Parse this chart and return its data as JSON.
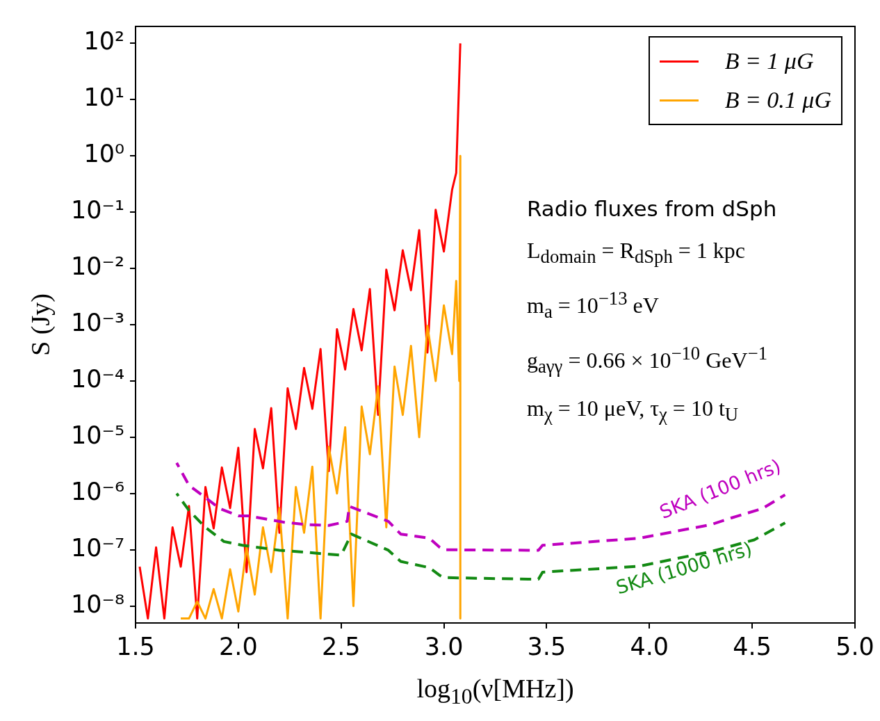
{
  "chart_data": {
    "type": "line",
    "xlabel": "log$_{10}$(ν[MHz])",
    "ylabel": "S (Jy)",
    "log": "y",
    "legend": "top right",
    "xlim": [
      1.5,
      5.0
    ],
    "xticks": [
      {
        "value": 1.5,
        "label": "1.5"
      },
      {
        "value": 2,
        "label": "2.0"
      },
      {
        "value": 2.5,
        "label": "2.5"
      },
      {
        "value": 3,
        "label": "3.0"
      },
      {
        "value": 3.5,
        "label": "3.5"
      },
      {
        "value": 4,
        "label": "4.0"
      },
      {
        "value": 4.5,
        "label": "4.5"
      },
      {
        "value": 5,
        "label": "5.0"
      }
    ],
    "ylim": [
      5e-09,
      200
    ],
    "yticks": [
      {
        "value": 1e-08,
        "label": "10⁻⁸"
      },
      {
        "value": 1e-07,
        "label": "10⁻⁷"
      },
      {
        "value": 1e-06,
        "label": "10⁻⁶"
      },
      {
        "value": 1e-05,
        "label": "10⁻⁵"
      },
      {
        "value": 0.0001,
        "label": "10⁻⁴"
      },
      {
        "value": 0.001,
        "label": "10⁻³"
      },
      {
        "value": 0.01,
        "label": "10⁻²"
      },
      {
        "value": 0.1,
        "label": "10⁻¹"
      },
      {
        "value": 1,
        "label": "10⁰"
      },
      {
        "value": 10,
        "label": "10¹"
      },
      {
        "value": 100,
        "label": "10²"
      }
    ],
    "annotations": [
      "Radio fluxes from dSph",
      "L$_{domain}$ = R$_{dSph}$ = 1 kpc",
      "m$_{a}$ = 10$^{−13}$ eV",
      "g$_{aγγ}$ = 0.66 × 10$^{−10}$ GeV$^{−1}$",
      "m$_{χ}$ = 10 μeV, τ$_{χ}$ = 10 t$_{U}$"
    ],
    "series": [
      {
        "name": "B = 1 μG",
        "color": "#ff0000",
        "line_style": "solid",
        "x": [
          1.52,
          1.56,
          1.6,
          1.64,
          1.68,
          1.72,
          1.76,
          1.8,
          1.84,
          1.88,
          1.92,
          1.96,
          2.0,
          2.04,
          2.08,
          2.12,
          2.16,
          2.2,
          2.24,
          2.28,
          2.32,
          2.36,
          2.4,
          2.44,
          2.48,
          2.52,
          2.56,
          2.6,
          2.64,
          2.68,
          2.72,
          2.76,
          2.8,
          2.84,
          2.88,
          2.92,
          2.96,
          3.0,
          3.04,
          3.06,
          3.08
        ],
        "values": [
          5e-08,
          6e-09,
          1.1e-07,
          6e-09,
          2.5e-07,
          5e-08,
          6e-07,
          6e-09,
          1.3e-06,
          2.4e-07,
          2.9e-06,
          5.5e-07,
          6.5e-06,
          4e-08,
          1.4e-05,
          2.8e-06,
          3.3e-05,
          2e-07,
          7.4e-05,
          1.4e-05,
          0.00017,
          3.2e-05,
          0.00037,
          2.5e-06,
          0.00083,
          0.00016,
          0.0019,
          0.00035,
          0.0043,
          2.5e-05,
          0.0095,
          0.0018,
          0.021,
          0.0041,
          0.048,
          0.00032,
          0.11,
          0.02,
          0.25,
          0.5,
          100
        ]
      },
      {
        "name": "B = 0.1 μG",
        "color": "#ffa500",
        "line_style": "solid",
        "x": [
          1.72,
          1.76,
          1.8,
          1.84,
          1.88,
          1.92,
          1.96,
          2.0,
          2.04,
          2.08,
          2.12,
          2.16,
          2.2,
          2.24,
          2.28,
          2.32,
          2.36,
          2.4,
          2.44,
          2.48,
          2.52,
          2.56,
          2.6,
          2.64,
          2.68,
          2.72,
          2.76,
          2.8,
          2.84,
          2.88,
          2.92,
          2.96,
          3.0,
          3.04,
          3.06,
          3.075,
          3.08,
          3.08
        ],
        "values": [
          6e-09,
          6e-09,
          1.2e-08,
          6e-09,
          2e-08,
          6e-09,
          4.5e-08,
          8e-09,
          1.1e-07,
          1.6e-08,
          2.5e-07,
          4e-08,
          5.5e-07,
          6e-09,
          1.3e-06,
          2e-07,
          3e-06,
          6e-09,
          6.8e-06,
          1e-06,
          1.5e-05,
          1e-08,
          3.5e-05,
          5e-06,
          8e-05,
          2.5e-07,
          0.00018,
          2.5e-05,
          0.00042,
          1e-05,
          0.00095,
          0.0001,
          0.0022,
          0.0003,
          0.006,
          0.0001,
          1,
          6e-09
        ]
      },
      {
        "name": "SKA (100 hrs)",
        "color": "#bf00bf",
        "line_style": "dashed",
        "x": [
          1.7,
          1.76,
          1.91,
          2.0,
          2.05,
          2.22,
          2.33,
          2.44,
          2.53,
          2.54,
          2.73,
          2.79,
          2.93,
          2.98,
          3.0,
          3.41,
          3.46,
          3.48,
          3.95,
          4.3,
          4.39,
          4.55,
          4.66
        ],
        "values": [
          3.5e-06,
          1.4e-06,
          5.4e-07,
          4e-07,
          4e-07,
          3.1e-07,
          2.8e-07,
          2.7e-07,
          3.2e-07,
          5.9e-07,
          3.2e-07,
          1.9e-07,
          1.6e-07,
          1.1e-07,
          1e-07,
          9.8e-08,
          9.8e-08,
          1.2e-07,
          1.6e-07,
          2.8e-07,
          3.6e-07,
          5.4e-07,
          9.5e-07
        ]
      },
      {
        "name": "SKA (1000 hrs)",
        "color": "#138a13",
        "line_style": "dashed",
        "x": [
          1.7,
          1.76,
          1.84,
          1.93,
          2.02,
          2.2,
          2.33,
          2.5,
          2.55,
          2.73,
          2.79,
          2.93,
          2.98,
          3.0,
          3.41,
          3.46,
          3.48,
          3.95,
          4.3,
          4.51,
          4.66
        ],
        "values": [
          1e-06,
          5e-07,
          2.5e-07,
          1.4e-07,
          1.2e-07,
          9.8e-08,
          9e-08,
          8e-08,
          1.9e-07,
          9.8e-08,
          6.2e-08,
          4.8e-08,
          3.5e-08,
          3.2e-08,
          3e-08,
          3e-08,
          4e-08,
          5.1e-08,
          9.3e-08,
          1.5e-07,
          3e-07
        ]
      }
    ]
  }
}
